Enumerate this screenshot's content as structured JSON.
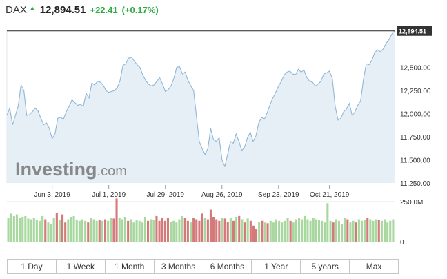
{
  "header": {
    "symbol": "DAX",
    "price": "12,894.51",
    "change": "+22.41",
    "change_pct": "(+0.17%)"
  },
  "watermark": "Investing.com",
  "range_tabs": [
    "1 Day",
    "1 Week",
    "1 Month",
    "3 Months",
    "6 Months",
    "1 Year",
    "5 years",
    "Max"
  ],
  "colors": {
    "line": "#8fb6d8",
    "area": "#e6eff6",
    "volume_up": "#a8d89f",
    "volume_down": "#d47a7a",
    "positive": "#2daa43",
    "last_price_label_bg": "#333333"
  },
  "chart_data": {
    "type": "area",
    "price_axis": {
      "ticks": [
        "12,500.00",
        "12,250.00",
        "12,000.00",
        "11,750.00",
        "11,500.00",
        "11,250.00"
      ],
      "tick_values": [
        12500,
        12250,
        12000,
        11750,
        11500,
        11250
      ],
      "last_price_label": "12,894.51",
      "ylim": [
        11250,
        12900
      ]
    },
    "x_axis": {
      "tick_labels": [
        "Jun 3, 2019",
        "Jul 1, 2019",
        "Jul 29, 2019",
        "Aug 26, 2019",
        "Sep 23, 2019",
        "Oct 21, 2019"
      ],
      "tick_positions": [
        16,
        36,
        56,
        76,
        96,
        114
      ]
    },
    "series": [
      {
        "values": [
          11980,
          12060,
          11880,
          11980,
          12080,
          12310,
          12250,
          11980,
          11990,
          12020,
          12060,
          12030,
          11950,
          11880,
          11900,
          11840,
          11730,
          11780,
          11950,
          11960,
          11940,
          12020,
          12080,
          12150,
          12120,
          12090,
          12100,
          12080,
          12220,
          12170,
          12330,
          12310,
          12350,
          12340,
          12310,
          12250,
          12230,
          12240,
          12250,
          12280,
          12360,
          12520,
          12540,
          12600,
          12610,
          12570,
          12530,
          12500,
          12420,
          12360,
          12320,
          12300,
          12310,
          12350,
          12390,
          12320,
          12240,
          12260,
          12300,
          12380,
          12500,
          12510,
          12430,
          12450,
          12360,
          12300,
          12250,
          11970,
          11700,
          11620,
          11560,
          11620,
          11840,
          11720,
          11700,
          11740,
          11500,
          11430,
          11560,
          11700,
          11680,
          11780,
          11700,
          11600,
          11640,
          11740,
          11800,
          11700,
          11760,
          11900,
          11960,
          11940,
          12010,
          12100,
          12170,
          12230,
          12300,
          12350,
          12420,
          12450,
          12460,
          12430,
          12420,
          12480,
          12450,
          12470,
          12390,
          12350,
          12340,
          12300,
          12320,
          12350,
          12430,
          12440,
          12460,
          12380,
          12080,
          11930,
          11950,
          12020,
          12050,
          12110,
          11980,
          12020,
          12090,
          12140,
          12370,
          12540,
          12530,
          12580,
          12660,
          12690,
          12670,
          12700,
          12760,
          12800,
          12860,
          12894.51
        ]
      }
    ],
    "volume": {
      "axis_ticks": [
        "250.0M",
        "0"
      ],
      "axis_values": [
        250,
        0
      ],
      "unit": "M",
      "bars": [
        {
          "v": 150,
          "up": true
        },
        {
          "v": 175,
          "up": true
        },
        {
          "v": 160,
          "up": true
        },
        {
          "v": 170,
          "up": true
        },
        {
          "v": 150,
          "up": true
        },
        {
          "v": 155,
          "up": true
        },
        {
          "v": 160,
          "up": true
        },
        {
          "v": 145,
          "up": true
        },
        {
          "v": 140,
          "up": true
        },
        {
          "v": 150,
          "up": true
        },
        {
          "v": 135,
          "up": true
        },
        {
          "v": 130,
          "up": true
        },
        {
          "v": 160,
          "up": true
        },
        {
          "v": 140,
          "up": false
        },
        {
          "v": 120,
          "up": true
        },
        {
          "v": 110,
          "up": true
        },
        {
          "v": 150,
          "up": true
        },
        {
          "v": 180,
          "up": false
        },
        {
          "v": 135,
          "up": true
        },
        {
          "v": 170,
          "up": false
        },
        {
          "v": 120,
          "up": false
        },
        {
          "v": 140,
          "up": true
        },
        {
          "v": 155,
          "up": true
        },
        {
          "v": 160,
          "up": true
        },
        {
          "v": 135,
          "up": true
        },
        {
          "v": 130,
          "up": true
        },
        {
          "v": 140,
          "up": true
        },
        {
          "v": 130,
          "up": true
        },
        {
          "v": 120,
          "up": false
        },
        {
          "v": 150,
          "up": true
        },
        {
          "v": 140,
          "up": true
        },
        {
          "v": 130,
          "up": true
        },
        {
          "v": 135,
          "up": false
        },
        {
          "v": 130,
          "up": true
        },
        {
          "v": 140,
          "up": false
        },
        {
          "v": 130,
          "up": true
        },
        {
          "v": 150,
          "up": true
        },
        {
          "v": 145,
          "up": false
        },
        {
          "v": 270,
          "up": false
        },
        {
          "v": 150,
          "up": true
        },
        {
          "v": 140,
          "up": true
        },
        {
          "v": 155,
          "up": true
        },
        {
          "v": 130,
          "up": false
        },
        {
          "v": 140,
          "up": true
        },
        {
          "v": 120,
          "up": true
        },
        {
          "v": 135,
          "up": true
        },
        {
          "v": 130,
          "up": true
        },
        {
          "v": 120,
          "up": true
        },
        {
          "v": 155,
          "up": true
        },
        {
          "v": 130,
          "up": false
        },
        {
          "v": 140,
          "up": true
        },
        {
          "v": 135,
          "up": true
        },
        {
          "v": 160,
          "up": false
        },
        {
          "v": 130,
          "up": false
        },
        {
          "v": 150,
          "up": false
        },
        {
          "v": 130,
          "up": false
        },
        {
          "v": 150,
          "up": false
        },
        {
          "v": 125,
          "up": true
        },
        {
          "v": 130,
          "up": true
        },
        {
          "v": 120,
          "up": true
        },
        {
          "v": 140,
          "up": true
        },
        {
          "v": 160,
          "up": true
        },
        {
          "v": 150,
          "up": false
        },
        {
          "v": 130,
          "up": false
        },
        {
          "v": 120,
          "up": true
        },
        {
          "v": 150,
          "up": false
        },
        {
          "v": 140,
          "up": false
        },
        {
          "v": 130,
          "up": false
        },
        {
          "v": 175,
          "up": false
        },
        {
          "v": 150,
          "up": true
        },
        {
          "v": 140,
          "up": false
        },
        {
          "v": 200,
          "up": false
        },
        {
          "v": 155,
          "up": false
        },
        {
          "v": 140,
          "up": false
        },
        {
          "v": 130,
          "up": false
        },
        {
          "v": 150,
          "up": true
        },
        {
          "v": 145,
          "up": false
        },
        {
          "v": 125,
          "up": false
        },
        {
          "v": 150,
          "up": true
        },
        {
          "v": 130,
          "up": false
        },
        {
          "v": 155,
          "up": true
        },
        {
          "v": 160,
          "up": false
        },
        {
          "v": 140,
          "up": true
        },
        {
          "v": 120,
          "up": false
        },
        {
          "v": 145,
          "up": true
        },
        {
          "v": 130,
          "up": false
        },
        {
          "v": 100,
          "up": false
        },
        {
          "v": 80,
          "up": false
        },
        {
          "v": 125,
          "up": true
        },
        {
          "v": 130,
          "up": false
        },
        {
          "v": 120,
          "up": true
        },
        {
          "v": 115,
          "up": false
        },
        {
          "v": 130,
          "up": true
        },
        {
          "v": 120,
          "up": true
        },
        {
          "v": 140,
          "up": true
        },
        {
          "v": 130,
          "up": true
        },
        {
          "v": 120,
          "up": true
        },
        {
          "v": 130,
          "up": true
        },
        {
          "v": 150,
          "up": true
        },
        {
          "v": 130,
          "up": false
        },
        {
          "v": 120,
          "up": true
        },
        {
          "v": 140,
          "up": true
        },
        {
          "v": 150,
          "up": true
        },
        {
          "v": 140,
          "up": true
        },
        {
          "v": 160,
          "up": true
        },
        {
          "v": 140,
          "up": true
        },
        {
          "v": 130,
          "up": true
        },
        {
          "v": 150,
          "up": true
        },
        {
          "v": 140,
          "up": true
        },
        {
          "v": 135,
          "up": true
        },
        {
          "v": 130,
          "up": true
        },
        {
          "v": 120,
          "up": true
        },
        {
          "v": 240,
          "up": true
        },
        {
          "v": 130,
          "up": true
        },
        {
          "v": 120,
          "up": false
        },
        {
          "v": 140,
          "up": true
        },
        {
          "v": 130,
          "up": true
        },
        {
          "v": 110,
          "up": true
        },
        {
          "v": 150,
          "up": true
        },
        {
          "v": 140,
          "up": false
        },
        {
          "v": 120,
          "up": true
        },
        {
          "v": 130,
          "up": true
        },
        {
          "v": 120,
          "up": false
        },
        {
          "v": 140,
          "up": true
        },
        {
          "v": 130,
          "up": true
        },
        {
          "v": 135,
          "up": true
        },
        {
          "v": 150,
          "up": false
        },
        {
          "v": 140,
          "up": true
        },
        {
          "v": 130,
          "up": true
        },
        {
          "v": 140,
          "up": true
        },
        {
          "v": 135,
          "up": false
        },
        {
          "v": 130,
          "up": true
        },
        {
          "v": 140,
          "up": true
        },
        {
          "v": 120,
          "up": true
        },
        {
          "v": 130,
          "up": true
        },
        {
          "v": 140,
          "up": true
        }
      ]
    }
  }
}
